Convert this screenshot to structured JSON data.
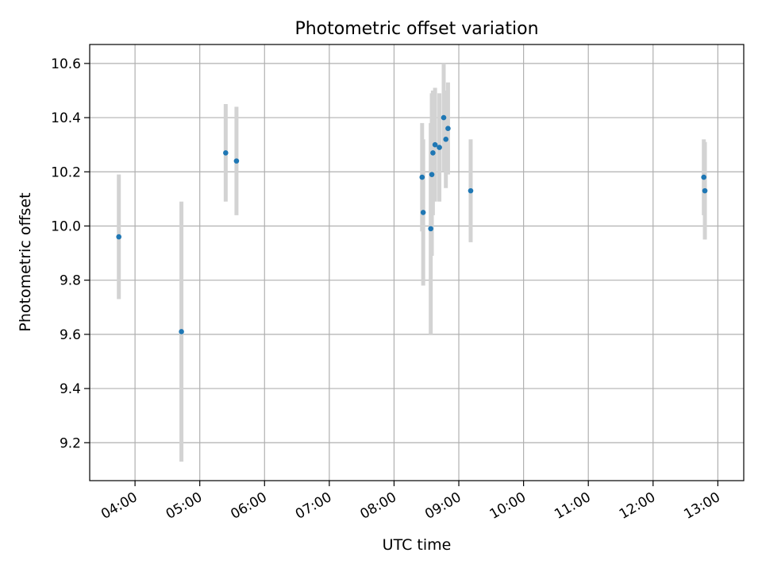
{
  "chart_data": {
    "type": "scatter",
    "title": "Photometric offset variation",
    "xlabel": "UTC time",
    "ylabel": "Photometric offset",
    "xlim": [
      "03:18",
      "13:24"
    ],
    "ylim": [
      9.06,
      10.67
    ],
    "x_ticks": [
      "04:00",
      "05:00",
      "06:00",
      "07:00",
      "08:00",
      "09:00",
      "10:00",
      "11:00",
      "12:00",
      "13:00"
    ],
    "y_ticks": [
      "9.2",
      "9.4",
      "9.6",
      "9.8",
      "10.0",
      "10.2",
      "10.4",
      "10.6"
    ],
    "grid": true,
    "marker_color": "#1f77b4",
    "errorbar_color": "#d3d3d3",
    "points": [
      {
        "x": "03:45",
        "y": 9.96,
        "yerr": 0.23
      },
      {
        "x": "04:43",
        "y": 9.61,
        "yerr": 0.48
      },
      {
        "x": "05:24",
        "y": 10.27,
        "yerr": 0.18
      },
      {
        "x": "05:34",
        "y": 10.24,
        "yerr": 0.2
      },
      {
        "x": "08:26",
        "y": 10.18,
        "yerr": 0.2
      },
      {
        "x": "08:27",
        "y": 10.05,
        "yerr": 0.27
      },
      {
        "x": "08:34",
        "y": 9.99,
        "yerr": 0.39
      },
      {
        "x": "08:35",
        "y": 10.19,
        "yerr": 0.3
      },
      {
        "x": "08:36",
        "y": 10.27,
        "yerr": 0.23
      },
      {
        "x": "08:38",
        "y": 10.3,
        "yerr": 0.21
      },
      {
        "x": "08:42",
        "y": 10.29,
        "yerr": 0.2
      },
      {
        "x": "08:46",
        "y": 10.4,
        "yerr": 0.2
      },
      {
        "x": "08:48",
        "y": 10.32,
        "yerr": 0.18
      },
      {
        "x": "08:50",
        "y": 10.36,
        "yerr": 0.17
      },
      {
        "x": "09:11",
        "y": 10.13,
        "yerr": 0.19
      },
      {
        "x": "12:47",
        "y": 10.18,
        "yerr": 0.14
      },
      {
        "x": "12:48",
        "y": 10.13,
        "yerr": 0.18
      }
    ]
  }
}
